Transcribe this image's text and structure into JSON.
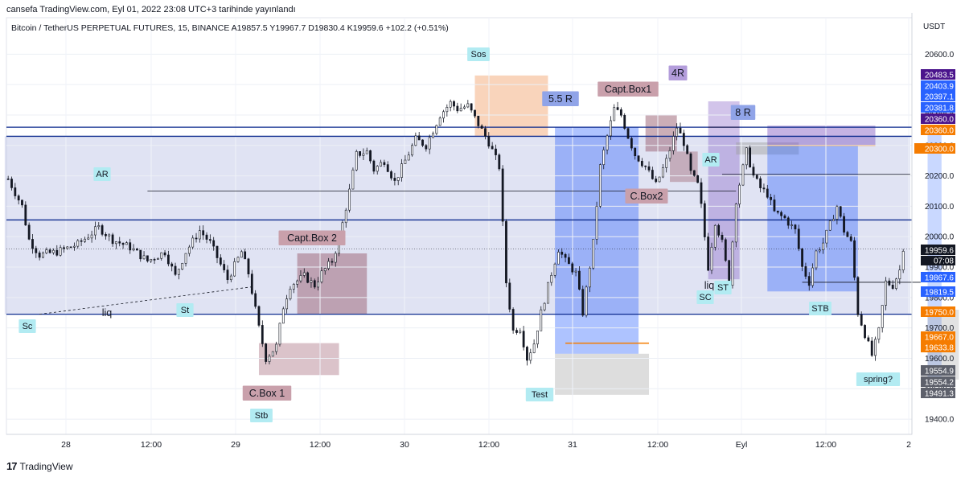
{
  "header": {
    "published": "cansefa TradingView.com, Eyl 01, 2022 23:08 UTC+3 tarihinde yayınlandı",
    "symbol_line": "Bitcoin / TetherUS PERPETUAL FUTURES, 15, BINANCE  A19857.5  Y19967.7  D19830.4  K19959.6  +102.2 (+0.51%)"
  },
  "footer": {
    "logo_mark": "17",
    "brand": "TradingView"
  },
  "colors": {
    "up": "#131722",
    "down": "#131722",
    "blue_line": "#0d2b8e",
    "price_blue": "#2962ff",
    "price_orange": "#f57c00",
    "price_purple": "#4a148c",
    "price_black": "#131722",
    "price_grey": "#5d606b",
    "label_bg": "#b2ebf2"
  },
  "chart_data": {
    "type": "candlestick",
    "timeframe": "15",
    "currency": "USDT",
    "x_ticks": [
      "28",
      "12:00",
      "29",
      "12:00",
      "30",
      "12:00",
      "31",
      "12:00",
      "Eyl",
      "12:00",
      "2"
    ],
    "y_ticks": [
      20600.0,
      20500.0,
      20400.0,
      20300.0,
      20200.0,
      20100.0,
      20000.0,
      19900.0,
      19800.0,
      19700.0,
      19600.0,
      19500.0,
      19400.0
    ],
    "y_range": [
      19350,
      20720
    ],
    "ohlc_last": {
      "open": 19857.5,
      "high": 19967.7,
      "low": 19830.4,
      "close": 19959.6,
      "change": 102.2,
      "change_pct": 0.51
    },
    "price_path": [
      [
        0,
        20190
      ],
      [
        4,
        20100
      ],
      [
        6,
        19990
      ],
      [
        9,
        19940
      ],
      [
        14,
        19950
      ],
      [
        20,
        19975
      ],
      [
        26,
        20030
      ],
      [
        30,
        19990
      ],
      [
        35,
        19965
      ],
      [
        40,
        19920
      ],
      [
        45,
        19950
      ],
      [
        48,
        19870
      ],
      [
        51,
        19950
      ],
      [
        55,
        20020
      ],
      [
        58,
        19980
      ],
      [
        63,
        19860
      ],
      [
        67,
        19950
      ],
      [
        69,
        19880
      ],
      [
        72,
        19700
      ],
      [
        74,
        19600
      ],
      [
        77,
        19640
      ],
      [
        79,
        19770
      ],
      [
        81,
        19840
      ],
      [
        85,
        19870
      ],
      [
        88,
        19840
      ],
      [
        90,
        19880
      ],
      [
        93,
        19920
      ],
      [
        95,
        19990
      ],
      [
        98,
        20150
      ],
      [
        100,
        20270
      ],
      [
        103,
        20280
      ],
      [
        105,
        20220
      ],
      [
        108,
        20250
      ],
      [
        111,
        20180
      ],
      [
        114,
        20250
      ],
      [
        117,
        20320
      ],
      [
        120,
        20300
      ],
      [
        124,
        20400
      ],
      [
        127,
        20440
      ],
      [
        129,
        20420
      ],
      [
        132,
        20430
      ],
      [
        135,
        20370
      ],
      [
        138,
        20310
      ],
      [
        141,
        20230
      ],
      [
        143,
        19850
      ],
      [
        145,
        19690
      ],
      [
        147,
        19700
      ],
      [
        149,
        19600
      ],
      [
        151,
        19650
      ],
      [
        153,
        19750
      ],
      [
        156,
        19880
      ],
      [
        158,
        19960
      ],
      [
        160,
        19920
      ],
      [
        163,
        19880
      ],
      [
        165,
        19750
      ],
      [
        168,
        19980
      ],
      [
        170,
        20230
      ],
      [
        172,
        20330
      ],
      [
        174,
        20420
      ],
      [
        176,
        20400
      ],
      [
        178,
        20330
      ],
      [
        180,
        20270
      ],
      [
        183,
        20230
      ],
      [
        186,
        20170
      ],
      [
        189,
        20250
      ],
      [
        192,
        20360
      ],
      [
        194,
        20310
      ],
      [
        196,
        20210
      ],
      [
        198,
        20170
      ],
      [
        199,
        20100
      ],
      [
        201,
        19900
      ],
      [
        203,
        20050
      ],
      [
        205,
        19980
      ],
      [
        207,
        19850
      ],
      [
        209,
        20120
      ],
      [
        212,
        20280
      ],
      [
        214,
        20200
      ],
      [
        216,
        20160
      ],
      [
        218,
        20140
      ],
      [
        220,
        20080
      ],
      [
        223,
        20060
      ],
      [
        226,
        20020
      ],
      [
        228,
        19900
      ],
      [
        230,
        19850
      ],
      [
        232,
        19950
      ],
      [
        234,
        19980
      ],
      [
        236,
        20040
      ],
      [
        238,
        20100
      ],
      [
        240,
        20020
      ],
      [
        242,
        19980
      ],
      [
        244,
        19750
      ],
      [
        246,
        19680
      ],
      [
        248,
        19610
      ],
      [
        250,
        19690
      ],
      [
        252,
        19850
      ],
      [
        254,
        19840
      ],
      [
        256,
        19890
      ],
      [
        257,
        19965
      ]
    ],
    "levels": [
      {
        "label": "20483.5",
        "value": 20483.5,
        "color": "#4a148c"
      },
      {
        "label": "20403.9",
        "value": 20403.9,
        "color": "#2962ff"
      },
      {
        "label": "20397.1",
        "value": 20397.1,
        "color": "#2962ff"
      },
      {
        "label": "20381.8",
        "value": 20381.8,
        "color": "#2962ff"
      },
      {
        "label": "20360.0",
        "value": 20360.0,
        "color": "#4a148c"
      },
      {
        "label": "20360.0",
        "value": 20360.0,
        "color": "#f57c00"
      },
      {
        "label": "20300.0",
        "value": 20300.0,
        "color": "#f57c00"
      },
      {
        "label": "19959.6",
        "value": 19959.6,
        "color": "#131722"
      },
      {
        "label": "19867.6",
        "value": 19867.6,
        "color": "#2962ff"
      },
      {
        "label": "19819.5",
        "value": 19819.5,
        "color": "#2962ff"
      },
      {
        "label": "19750.0",
        "value": 19750.0,
        "color": "#f57c00"
      },
      {
        "label": "19667.0",
        "value": 19667.0,
        "color": "#f57c00"
      },
      {
        "label": "19633.8",
        "value": 19633.8,
        "color": "#f57c00"
      },
      {
        "label": "19554.9",
        "value": 19554.9,
        "color": "#5d606b"
      },
      {
        "label": "19554.2",
        "value": 19554.2,
        "color": "#5d606b"
      },
      {
        "label": "19491.3",
        "value": 19491.3,
        "color": "#5d606b"
      }
    ],
    "countdown": "07:08",
    "horizontal_lines": [
      20360,
      20330,
      20055,
      19745
    ],
    "annotations": [
      {
        "text": "Sc",
        "style": "cyan"
      },
      {
        "text": "liq",
        "style": "plain"
      },
      {
        "text": "St",
        "style": "cyan"
      },
      {
        "text": "AR",
        "style": "cyan"
      },
      {
        "text": "Stb",
        "style": "cyan"
      },
      {
        "text": "C.Box 1",
        "style": "pink"
      },
      {
        "text": "Capt.Box 2",
        "style": "pink"
      },
      {
        "text": "Sos",
        "style": "cyan"
      },
      {
        "text": "Test",
        "style": "cyan"
      },
      {
        "text": "5.5 R",
        "style": "blue"
      },
      {
        "text": "Capt.Box1",
        "style": "pink"
      },
      {
        "text": "C.Box2",
        "style": "pink"
      },
      {
        "text": "4R",
        "style": "purple"
      },
      {
        "text": "AR",
        "style": "cyan"
      },
      {
        "text": "8 R",
        "style": "blue"
      },
      {
        "text": "liq",
        "style": "plain"
      },
      {
        "text": "ST",
        "style": "cyan"
      },
      {
        "text": "SC",
        "style": "cyan"
      },
      {
        "text": "STB",
        "style": "cyan"
      },
      {
        "text": "spring?",
        "style": "cyan"
      }
    ]
  }
}
